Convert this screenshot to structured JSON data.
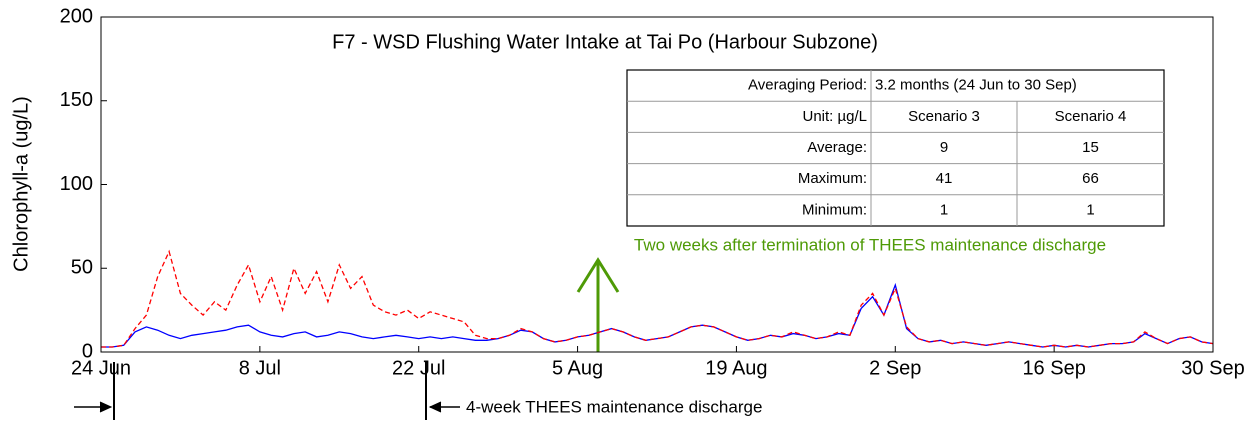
{
  "chart_data": {
    "type": "line",
    "title": "F7 - WSD Flushing Water Intake at Tai Po (Harbour Subzone)",
    "y_label": "Chlorophyll-a (ug/L)",
    "x": [
      0,
      1,
      2,
      3,
      4,
      5,
      6,
      7,
      8,
      9,
      10,
      11,
      12,
      13,
      14,
      15,
      16,
      17,
      18,
      19,
      20,
      21,
      22,
      23,
      24,
      25,
      26,
      27,
      28,
      29,
      30,
      31,
      32,
      33,
      34,
      35,
      36,
      37,
      38,
      39,
      40,
      41,
      42,
      43,
      44,
      45,
      46,
      47,
      48,
      49,
      50,
      51,
      52,
      53,
      54,
      55,
      56,
      57,
      58,
      59,
      60,
      61,
      62,
      63,
      64,
      65,
      66,
      67,
      68,
      69,
      70,
      71,
      72,
      73,
      74,
      75,
      76,
      77,
      78,
      79,
      80,
      81,
      82,
      83,
      84,
      85,
      86,
      87,
      88,
      89,
      90,
      91,
      92,
      93,
      94,
      95,
      96,
      97,
      98
    ],
    "series": [
      {
        "name": "Scenario 4",
        "color": "#ff0000",
        "dashed": true,
        "values": [
          3,
          3,
          4,
          14,
          22,
          45,
          60,
          35,
          28,
          22,
          30,
          25,
          40,
          52,
          30,
          45,
          25,
          50,
          35,
          48,
          30,
          52,
          38,
          45,
          28,
          24,
          22,
          25,
          20,
          24,
          22,
          20,
          18,
          10,
          8,
          8,
          10,
          14,
          12,
          8,
          6,
          7,
          9,
          10,
          12,
          14,
          12,
          9,
          7,
          8,
          9,
          12,
          15,
          16,
          15,
          12,
          9,
          7,
          8,
          10,
          9,
          12,
          10,
          8,
          9,
          12,
          10,
          28,
          35,
          22,
          38,
          15,
          8,
          6,
          7,
          5,
          6,
          5,
          4,
          5,
          6,
          5,
          4,
          3,
          4,
          3,
          4,
          3,
          4,
          5,
          5,
          6,
          12,
          8,
          5,
          8,
          9,
          6,
          5
        ]
      },
      {
        "name": "Scenario 3",
        "color": "#0000ff",
        "dashed": false,
        "values": [
          3,
          3,
          4,
          12,
          15,
          13,
          10,
          8,
          10,
          11,
          12,
          13,
          15,
          16,
          12,
          10,
          9,
          11,
          12,
          9,
          10,
          12,
          11,
          9,
          8,
          9,
          10,
          9,
          8,
          9,
          8,
          9,
          8,
          7,
          7,
          8,
          10,
          13,
          12,
          8,
          6,
          7,
          9,
          10,
          12,
          14,
          12,
          9,
          7,
          8,
          9,
          12,
          15,
          16,
          15,
          12,
          9,
          7,
          8,
          10,
          9,
          11,
          10,
          8,
          9,
          11,
          10,
          26,
          33,
          22,
          40,
          14,
          8,
          6,
          7,
          5,
          6,
          5,
          4,
          5,
          6,
          5,
          4,
          3,
          4,
          3,
          4,
          3,
          4,
          5,
          5,
          6,
          11,
          8,
          5,
          8,
          9,
          6,
          5
        ]
      }
    ],
    "xlim": [
      0,
      98
    ],
    "xticks": [
      {
        "value": 0,
        "label": "24 Jun"
      },
      {
        "value": 14,
        "label": "8 Jul"
      },
      {
        "value": 28,
        "label": "22 Jul"
      },
      {
        "value": 42,
        "label": "5 Aug"
      },
      {
        "value": 56,
        "label": "19 Aug"
      },
      {
        "value": 70,
        "label": "2 Sep"
      },
      {
        "value": 84,
        "label": "16 Sep"
      },
      {
        "value": 98,
        "label": "30 Sep"
      }
    ],
    "ylim": [
      0,
      200
    ],
    "yticks": [
      0,
      50,
      100,
      150,
      200
    ],
    "table": {
      "rows": [
        [
          "Averaging Period:",
          "3.2 months (24 Jun to 30 Sep)"
        ],
        [
          "Unit: µg/L",
          "Scenario 3",
          "Scenario 4"
        ],
        [
          "Average:",
          "9",
          "15"
        ],
        [
          "Maximum:",
          "41",
          "66"
        ],
        [
          "Minimum:",
          "1",
          "1"
        ]
      ]
    },
    "annotations": [
      "Two weeks after termination of THEES maintenance discharge",
      "4-week THEES maintenance discharge"
    ]
  }
}
